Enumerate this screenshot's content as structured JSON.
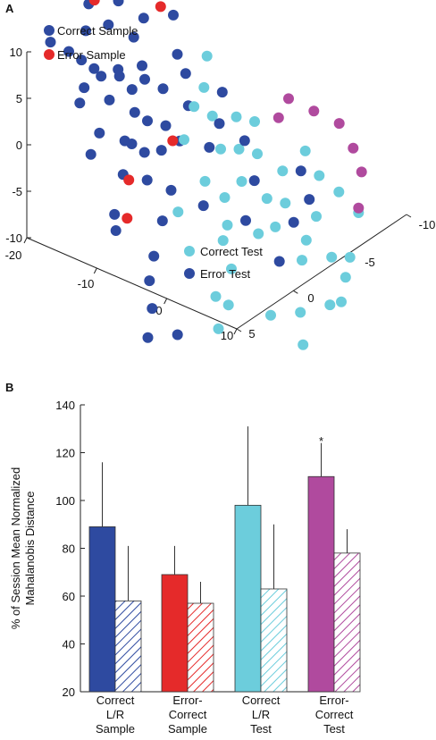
{
  "panels": {
    "a_label": "A",
    "b_label": "B"
  },
  "colors": {
    "dark_blue": "#2e4aa0",
    "red": "#e52a2a",
    "cyan": "#6ccddc",
    "magenta": "#b04a9e",
    "axis": "#222222"
  },
  "chart_data": [
    {
      "type": "scatter",
      "subtype": "3d-scatter",
      "axes": {
        "vertical": {
          "ticks": [
            "10",
            "5",
            "0",
            "-5",
            "-10"
          ]
        },
        "left_depth": {
          "ticks": [
            "-20",
            "-10",
            "0",
            "10"
          ]
        },
        "right_depth": {
          "ticks": [
            "-10",
            "-5",
            "0",
            "5"
          ]
        }
      },
      "legend": {
        "top": [
          {
            "label": "Correct Sample",
            "color": "#2e4aa0"
          },
          {
            "label": "Error Sample",
            "color": "#e52a2a"
          }
        ],
        "bottom": [
          {
            "label": "Correct Test",
            "color": "#6ccddc"
          },
          {
            "label": "Error Test",
            "color": "#2e4aa0"
          }
        ]
      },
      "series": [
        {
          "name": "Correct Sample",
          "color": "#2e4aa0",
          "points": [
            [
              -15,
              6,
              13.5
            ],
            [
              -14,
              5,
              12
            ],
            [
              -13,
              4.5,
              11
            ],
            [
              -12,
              4,
              10
            ],
            [
              -11,
              5.5,
              9.5
            ],
            [
              -10,
              3,
              9
            ],
            [
              -9,
              4.5,
              8
            ],
            [
              -8,
              2,
              8.5
            ],
            [
              -7,
              1,
              7
            ],
            [
              -14,
              1.5,
              12
            ],
            [
              -12,
              0.5,
              10.5
            ],
            [
              -16,
              2,
              14
            ],
            [
              -8,
              6,
              6
            ],
            [
              -5,
              5,
              5
            ],
            [
              -6,
              3,
              5.5
            ],
            [
              -4,
              4.5,
              4
            ],
            [
              -3,
              2,
              3.5
            ],
            [
              -2,
              5.5,
              2.5
            ],
            [
              -3,
              7,
              4
            ],
            [
              -1,
              9,
              2
            ],
            [
              0,
              9.5,
              1
            ],
            [
              -6,
              8,
              6
            ],
            [
              -10,
              6.5,
              9
            ],
            [
              -11,
              2.5,
              9
            ],
            [
              -13,
              -1,
              11
            ],
            [
              -12,
              -3,
              10
            ],
            [
              -9,
              -1.5,
              8
            ],
            [
              -7,
              -1,
              7
            ],
            [
              -5,
              0,
              5
            ],
            [
              -4,
              3,
              3
            ],
            [
              -1,
              4,
              0.5
            ],
            [
              2,
              3,
              -1
            ],
            [
              1,
              6,
              -0.5
            ],
            [
              3,
              8,
              -2
            ],
            [
              4,
              9,
              -3.5
            ],
            [
              6,
              10,
              -5
            ],
            [
              7,
              11,
              -7
            ],
            [
              8,
              9,
              -8
            ],
            [
              -9,
              2.5,
              7.5
            ],
            [
              -11,
              4,
              9.5
            ],
            [
              -14,
              3.5,
              13
            ],
            [
              -15,
              0,
              13
            ],
            [
              -10,
              1,
              8.5
            ],
            [
              -7,
              3.5,
              6.5
            ],
            [
              -5,
              2,
              4.5
            ],
            [
              -2,
              0,
              1.5
            ],
            [
              -6,
              5,
              5
            ]
          ]
        },
        {
          "name": "Error Sample",
          "color": "#e52a2a",
          "points": [
            [
              -16,
              1.5,
              14
            ],
            [
              -13,
              -2.5,
              11
            ],
            [
              -3,
              6.5,
              3
            ],
            [
              0,
              8.5,
              1.5
            ],
            [
              -4,
              2,
              3.2
            ]
          ]
        },
        {
          "name": "Correct Test",
          "color": "#6ccddc",
          "points": [
            [
              -5,
              -0.5,
              4.5
            ],
            [
              -4,
              -1.5,
              3
            ],
            [
              -3,
              -3,
              2
            ],
            [
              -2,
              -4,
              1
            ],
            [
              -1,
              -2,
              0
            ],
            [
              0,
              -3,
              -1
            ],
            [
              1,
              -1,
              -2
            ],
            [
              2,
              -4,
              -3
            ],
            [
              3,
              -2,
              -4
            ],
            [
              4,
              -3,
              -5
            ],
            [
              5,
              -1.5,
              -6
            ],
            [
              6,
              -4.5,
              -7
            ],
            [
              7,
              -3,
              -8
            ],
            [
              8,
              -2,
              -9
            ],
            [
              9,
              -4,
              -10
            ],
            [
              -1,
              1,
              -1
            ],
            [
              1,
              0.5,
              -2.5
            ],
            [
              3,
              1.5,
              -4
            ],
            [
              5,
              0,
              -5.5
            ],
            [
              6,
              3,
              -6.5
            ],
            [
              8,
              4.5,
              -8.5
            ],
            [
              9,
              6,
              -9.5
            ],
            [
              10,
              2,
              -11
            ],
            [
              11,
              0,
              -12
            ],
            [
              12,
              -3,
              -13
            ],
            [
              7,
              5,
              -7.5
            ],
            [
              4,
              2.5,
              -4.5
            ],
            [
              -2,
              -1,
              0.5
            ],
            [
              -4,
              1,
              2.5
            ],
            [
              -6,
              -2,
              5
            ],
            [
              -8,
              -3.5,
              6.5
            ],
            [
              0,
              4,
              -1.5
            ],
            [
              2,
              -6,
              -2.5
            ],
            [
              4,
              -6,
              -4.5
            ],
            [
              6,
              -6.5,
              -6
            ],
            [
              8,
              -7,
              -8
            ],
            [
              10,
              -5,
              -10.5
            ],
            [
              11,
              -4,
              -11.5
            ],
            [
              12,
              -2,
              -12.5
            ],
            [
              13,
              1,
              -14
            ]
          ]
        },
        {
          "name": "Error Test",
          "color": "#2e4aa0",
          "points": [
            [
              -3,
              -1.5,
              2.5
            ],
            [
              -1,
              -2.5,
              0.5
            ],
            [
              2,
              -1.5,
              -2
            ],
            [
              4,
              0.5,
              -4
            ],
            [
              6,
              -2.5,
              -6
            ],
            [
              8,
              0,
              -7.5
            ],
            [
              5,
              -4.5,
              -5.5
            ],
            [
              -5,
              -3,
              4
            ],
            [
              3,
              -5,
              -3.5
            ]
          ]
        },
        {
          "name": "Error Test (magenta)",
          "color": "#b04a9e",
          "points": [
            [
              -2,
              -7,
              1
            ],
            [
              0,
              -8,
              -0.5
            ],
            [
              2,
              -9,
              -2
            ],
            [
              4,
              -9,
              -4
            ],
            [
              6,
              -8.5,
              -5.5
            ],
            [
              8,
              -7,
              -7.5
            ],
            [
              -1,
              -5.5,
              0.5
            ]
          ]
        }
      ]
    },
    {
      "type": "bar",
      "ylabel": "% of Session Mean Normalized Mahalanobis Distance",
      "ylim": [
        20,
        140
      ],
      "yticks": [
        20,
        40,
        60,
        80,
        100,
        120,
        140
      ],
      "groups": [
        {
          "label": [
            "Correct",
            "L/R",
            "Sample"
          ],
          "color": "#2e4aa0",
          "solid": 89,
          "solid_err": 27,
          "hatched": 58,
          "hatched_err": 23
        },
        {
          "label": [
            "Error-",
            "Correct",
            "Sample"
          ],
          "color": "#e52a2a",
          "solid": 69,
          "solid_err": 12,
          "hatched": 57,
          "hatched_err": 9
        },
        {
          "label": [
            "Correct",
            "L/R",
            "Test"
          ],
          "color": "#6ccddc",
          "solid": 98,
          "solid_err": 33,
          "hatched": 63,
          "hatched_err": 27
        },
        {
          "label": [
            "Error-",
            "Correct",
            "Test"
          ],
          "color": "#b04a9e",
          "solid": 110,
          "solid_err": 14,
          "hatched": 78,
          "hatched_err": 10
        }
      ],
      "annotation": "*"
    }
  ]
}
